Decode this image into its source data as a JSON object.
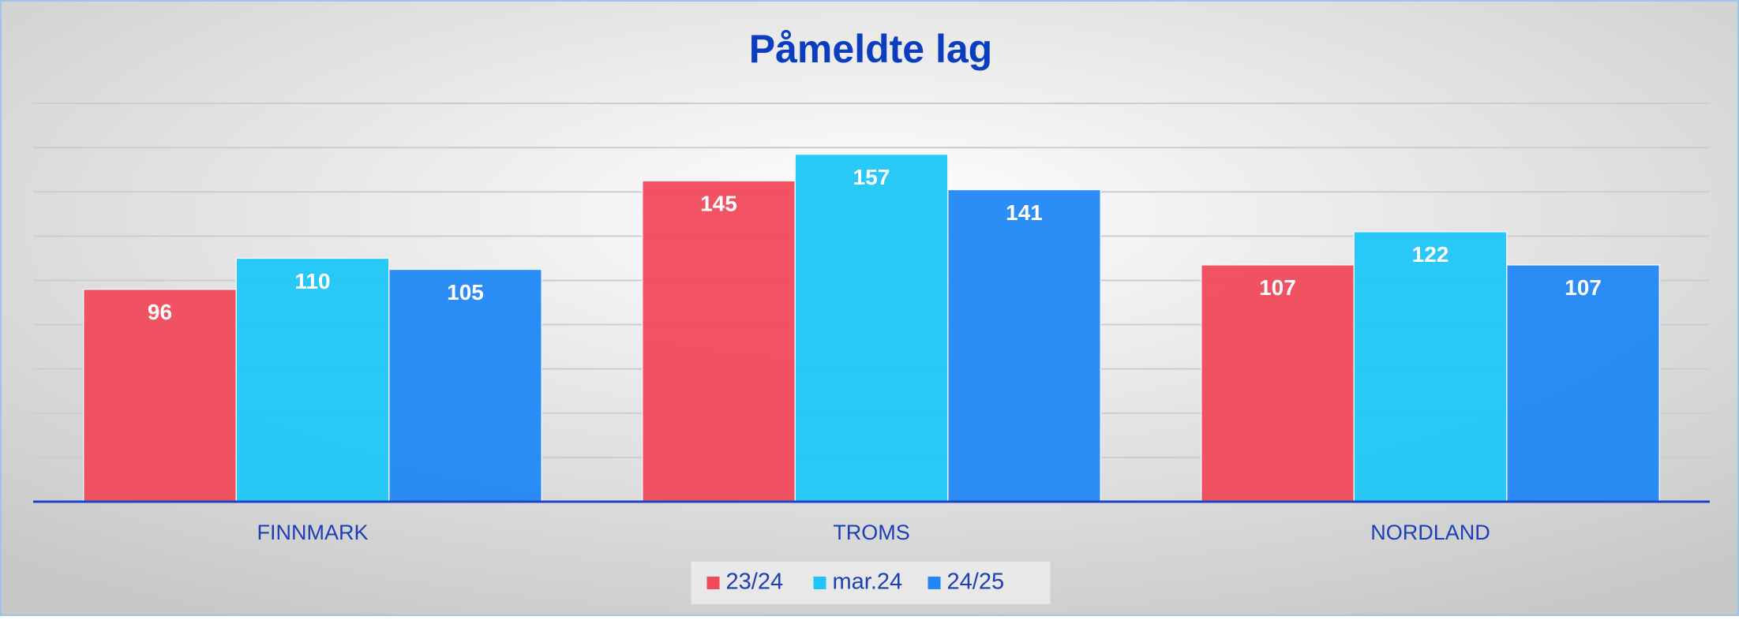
{
  "chart_data": {
    "type": "bar",
    "title": "Påmeldte lag",
    "categories": [
      "FINNMARK",
      "TROMS",
      "NORDLAND"
    ],
    "series": [
      {
        "name": "23/24",
        "color": "#f04a5a",
        "values": [
          96,
          145,
          107
        ]
      },
      {
        "name": "mar.24",
        "color": "#1ec6f8",
        "values": [
          110,
          157,
          122
        ]
      },
      {
        "name": "24/25",
        "color": "#2187f7",
        "values": [
          105,
          141,
          107
        ]
      }
    ],
    "ylim": [
      0,
      180
    ],
    "yticks": [
      0,
      20,
      40,
      60,
      80,
      100,
      120,
      140,
      160,
      180
    ],
    "grid": true,
    "legend": "bottom"
  }
}
